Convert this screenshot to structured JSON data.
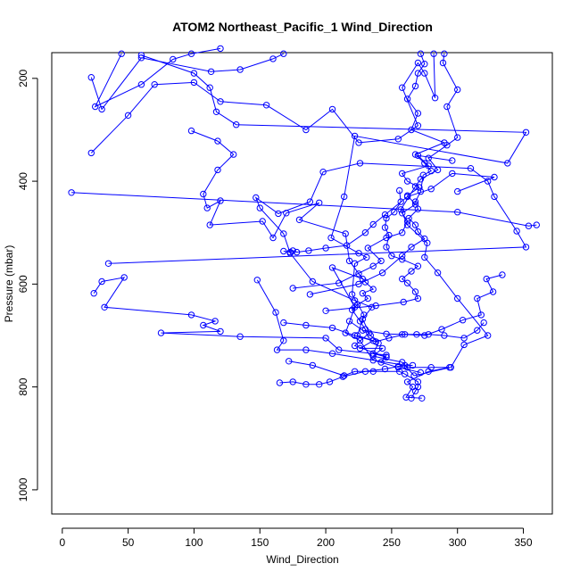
{
  "chart_data": {
    "type": "line",
    "title": "ATOM2 Northeast_Pacific_1 Wind_Direction",
    "xlabel": "Wind_Direction",
    "ylabel": "Pressure (mbar)",
    "xlim": [
      -8,
      372
    ],
    "ylim": [
      1047,
      150
    ],
    "y_reversed": true,
    "x_ticks": [
      0,
      50,
      100,
      150,
      200,
      250,
      300,
      350
    ],
    "y_ticks": [
      200,
      400,
      600,
      800,
      1000
    ],
    "grid": false,
    "marker": "open-circle",
    "series_color": "#0000ff",
    "series": [
      {
        "name": "",
        "points": [
          [
            45,
            152
          ],
          [
            25,
            255
          ],
          [
            60,
            212
          ],
          [
            84,
            163
          ],
          [
            98,
            152
          ],
          [
            120,
            142
          ]
        ]
      },
      {
        "name": "",
        "points": [
          [
            22,
            198
          ],
          [
            30,
            260
          ],
          [
            60,
            160
          ],
          [
            113,
            187
          ],
          [
            135,
            183
          ],
          [
            160,
            162
          ],
          [
            168,
            152
          ]
        ]
      },
      {
        "name": "",
        "points": [
          [
            22,
            345
          ],
          [
            50,
            272
          ],
          [
            70,
            212
          ],
          [
            100,
            208
          ],
          [
            120,
            245
          ],
          [
            155,
            252
          ],
          [
            185,
            300
          ],
          [
            205,
            260
          ],
          [
            225,
            325
          ],
          [
            255,
            318
          ],
          [
            270,
            292
          ],
          [
            258,
            218
          ],
          [
            270,
            170
          ],
          [
            275,
            190
          ],
          [
            283,
            238
          ],
          [
            282,
            152
          ]
        ]
      },
      {
        "name": "",
        "points": [
          [
            60,
            155
          ],
          [
            100,
            190
          ],
          [
            112,
            218
          ],
          [
            117,
            265
          ],
          [
            132,
            290
          ],
          [
            352,
            305
          ],
          [
            338,
            365
          ],
          [
            222,
            312
          ],
          [
            214,
            430
          ],
          [
            204,
            510
          ],
          [
            225,
            540
          ],
          [
            231,
            548
          ],
          [
            222,
            560
          ],
          [
            220,
            620
          ],
          [
            229,
            660
          ],
          [
            224,
            700
          ],
          [
            236,
            710
          ],
          [
            226,
            725
          ],
          [
            243,
            725
          ],
          [
            236,
            740
          ],
          [
            258,
            752
          ],
          [
            262,
            762
          ],
          [
            280,
            762
          ],
          [
            294,
            762
          ],
          [
            278,
            770
          ],
          [
            262,
            790
          ],
          [
            266,
            800
          ],
          [
            261,
            820
          ],
          [
            273,
            822
          ]
        ]
      },
      {
        "name": "",
        "points": [
          [
            98,
            302
          ],
          [
            118,
            322
          ],
          [
            130,
            348
          ],
          [
            118,
            378
          ],
          [
            107,
            425
          ],
          [
            110,
            452
          ],
          [
            120,
            438
          ],
          [
            112,
            485
          ],
          [
            152,
            478
          ],
          [
            160,
            510
          ],
          [
            170,
            462
          ],
          [
            195,
            442
          ],
          [
            180,
            475
          ],
          [
            215,
            502
          ],
          [
            218,
            555
          ],
          [
            228,
            590
          ],
          [
            205,
            568
          ],
          [
            222,
            645
          ],
          [
            215,
            695
          ],
          [
            226,
            710
          ],
          [
            236,
            748
          ],
          [
            255,
            762
          ],
          [
            272,
            772
          ]
        ]
      },
      {
        "name": "",
        "points": [
          [
            7,
            422
          ],
          [
            300,
            460
          ],
          [
            354,
            487
          ],
          [
            360,
            485
          ]
        ]
      },
      {
        "name": "",
        "points": [
          [
            35,
            560
          ],
          [
            352,
            528
          ],
          [
            345,
            497
          ],
          [
            328,
            430
          ],
          [
            323,
            400
          ],
          [
            310,
            375
          ],
          [
            226,
            365
          ],
          [
            198,
            382
          ],
          [
            188,
            440
          ],
          [
            164,
            463
          ],
          [
            147,
            432
          ],
          [
            150,
            452
          ],
          [
            168,
            502
          ],
          [
            173,
            540
          ],
          [
            190,
            595
          ],
          [
            222,
            632
          ],
          [
            235,
            645
          ],
          [
            228,
            668
          ],
          [
            233,
            695
          ],
          [
            222,
            720
          ],
          [
            246,
            742
          ]
        ]
      },
      {
        "name": "",
        "points": [
          [
            24,
            618
          ],
          [
            30,
            595
          ],
          [
            47,
            587
          ],
          [
            32,
            645
          ],
          [
            98,
            660
          ],
          [
            116,
            672
          ],
          [
            107,
            680
          ],
          [
            120,
            692
          ],
          [
            75,
            695
          ],
          [
            135,
            702
          ],
          [
            200,
            705
          ],
          [
            210,
            728
          ],
          [
            246,
            738
          ],
          [
            242,
            752
          ]
        ]
      },
      {
        "name": "",
        "points": [
          [
            148,
            592
          ],
          [
            162,
            655
          ],
          [
            168,
            710
          ],
          [
            163,
            728
          ],
          [
            185,
            728
          ],
          [
            205,
            735
          ],
          [
            260,
            758
          ],
          [
            267,
            778
          ],
          [
            295,
            762
          ],
          [
            305,
            718
          ],
          [
            323,
            700
          ],
          [
            300,
            628
          ],
          [
            285,
            578
          ],
          [
            275,
            548
          ],
          [
            277,
            520
          ],
          [
            262,
            485
          ],
          [
            257,
            455
          ],
          [
            268,
            410
          ],
          [
            272,
            396
          ],
          [
            285,
            378
          ],
          [
            278,
            355
          ],
          [
            292,
            330
          ],
          [
            300,
            315
          ],
          [
            292,
            255
          ],
          [
            300,
            222
          ],
          [
            289,
            170
          ],
          [
            290,
            152
          ]
        ]
      },
      {
        "name": "",
        "points": [
          [
            168,
            536
          ],
          [
            173,
            538
          ],
          [
            175,
            535
          ],
          [
            178,
            538
          ],
          [
            187,
            535
          ],
          [
            200,
            530
          ],
          [
            216,
            525
          ],
          [
            230,
            500
          ],
          [
            236,
            484
          ],
          [
            245,
            465
          ],
          [
            262,
            430
          ],
          [
            280,
            415
          ],
          [
            296,
            385
          ],
          [
            328,
            392
          ],
          [
            300,
            420
          ]
        ]
      },
      {
        "name": "",
        "points": [
          [
            175,
            608
          ],
          [
            210,
            598
          ],
          [
            236,
            565
          ],
          [
            242,
            555
          ],
          [
            232,
            530
          ],
          [
            246,
            510
          ],
          [
            258,
            500
          ],
          [
            262,
            478
          ],
          [
            258,
            462
          ],
          [
            268,
            445
          ],
          [
            262,
            428
          ],
          [
            271,
            412
          ],
          [
            262,
            400
          ],
          [
            258,
            385
          ],
          [
            278,
            370
          ],
          [
            270,
            350
          ],
          [
            296,
            360
          ]
        ]
      },
      {
        "name": "",
        "points": [
          [
            188,
            620
          ],
          [
            225,
            600
          ],
          [
            243,
            578
          ],
          [
            258,
            545
          ],
          [
            265,
            528
          ],
          [
            275,
            512
          ],
          [
            270,
            498
          ],
          [
            268,
            485
          ],
          [
            263,
            472
          ],
          [
            270,
            454
          ],
          [
            268,
            440
          ],
          [
            272,
            420
          ],
          [
            274,
            388
          ],
          [
            280,
            380
          ],
          [
            275,
            365
          ],
          [
            268,
            348
          ],
          [
            290,
            325
          ],
          [
            265,
            300
          ],
          [
            270,
            268
          ],
          [
            262,
            240
          ],
          [
            268,
            215
          ],
          [
            270,
            190
          ],
          [
            275,
            172
          ],
          [
            272,
            152
          ]
        ]
      },
      {
        "name": "",
        "points": [
          [
            168,
            675
          ],
          [
            185,
            680
          ],
          [
            205,
            685
          ],
          [
            222,
            700
          ],
          [
            238,
            712
          ],
          [
            248,
            705
          ],
          [
            260,
            698
          ],
          [
            275,
            700
          ],
          [
            288,
            688
          ],
          [
            304,
            670
          ],
          [
            318,
            660
          ],
          [
            315,
            628
          ],
          [
            327,
            615
          ],
          [
            322,
            590
          ],
          [
            334,
            582
          ]
        ]
      },
      {
        "name": "",
        "points": [
          [
            200,
            652
          ],
          [
            238,
            642
          ],
          [
            259,
            635
          ],
          [
            270,
            628
          ],
          [
            268,
            615
          ],
          [
            262,
            598
          ],
          [
            258,
            590
          ],
          [
            265,
            575
          ],
          [
            270,
            565
          ],
          [
            258,
            552
          ],
          [
            250,
            545
          ],
          [
            246,
            528
          ],
          [
            248,
            505
          ],
          [
            245,
            490
          ],
          [
            246,
            472
          ],
          [
            252,
            460
          ],
          [
            257,
            440
          ],
          [
            256,
            418
          ]
        ]
      },
      {
        "name": "",
        "points": [
          [
            172,
            750
          ],
          [
            190,
            758
          ],
          [
            214,
            778
          ],
          [
            222,
            770
          ],
          [
            236,
            770
          ],
          [
            256,
            770
          ],
          [
            260,
            775
          ],
          [
            270,
            790
          ],
          [
            270,
            800
          ],
          [
            268,
            808
          ],
          [
            265,
            822
          ]
        ]
      },
      {
        "name": "",
        "points": [
          [
            165,
            792
          ],
          [
            175,
            790
          ],
          [
            185,
            795
          ],
          [
            195,
            795
          ],
          [
            203,
            790
          ],
          [
            213,
            780
          ],
          [
            230,
            770
          ],
          [
            245,
            765
          ],
          [
            255,
            760
          ],
          [
            266,
            758
          ]
        ]
      },
      {
        "name": "",
        "points": [
          [
            218,
            672
          ],
          [
            228,
            690
          ],
          [
            246,
            697
          ],
          [
            258,
            698
          ],
          [
            269,
            698
          ],
          [
            278,
            698
          ],
          [
            290,
            700
          ],
          [
            305,
            705
          ],
          [
            315,
            690
          ],
          [
            320,
            675
          ]
        ]
      },
      {
        "name": "",
        "points": [
          [
            225,
            580
          ],
          [
            230,
            596
          ],
          [
            236,
            610
          ],
          [
            228,
            618
          ],
          [
            232,
            628
          ],
          [
            224,
            640
          ],
          [
            220,
            650
          ],
          [
            226,
            672
          ],
          [
            230,
            688
          ],
          [
            234,
            700
          ],
          [
            240,
            715
          ],
          [
            236,
            735
          ],
          [
            246,
            742
          ]
        ]
      }
    ]
  }
}
